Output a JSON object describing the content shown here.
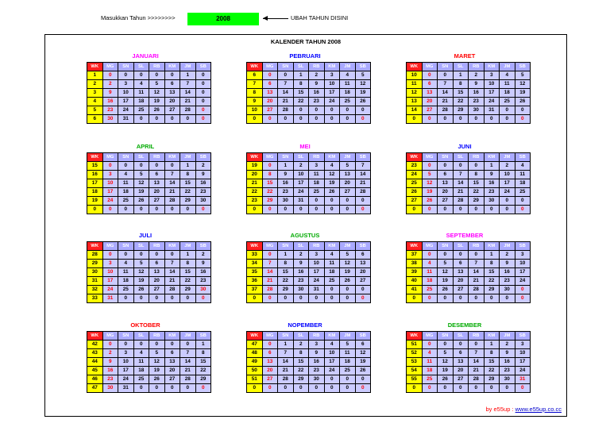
{
  "top": {
    "prompt": "Masukkan Tahun >>>>>>>>",
    "year": "2008",
    "hint": "UBAH TAHUN DISINI"
  },
  "title": "KALENDER TAHUN 2008",
  "headers": [
    "WK",
    "MG",
    "SN",
    "SL",
    "RB",
    "KM",
    "JM",
    "SB"
  ],
  "colors": {
    "wk_header": "#ff2020",
    "wk_cell": "#ffff00",
    "cell": "#ccccff",
    "header": "#aaaaff",
    "sunday": "#ff0000"
  },
  "months": [
    {
      "name": "JANUARI",
      "color": "#ff00ff",
      "rows": [
        [
          "1",
          "0",
          "0",
          "0",
          "0",
          "0",
          "1"
        ],
        [
          "2",
          "2",
          "3",
          "4",
          "5",
          "6",
          "7"
        ],
        [
          "3",
          "9",
          "10",
          "11",
          "12",
          "13",
          "14"
        ],
        [
          "4",
          "16",
          "17",
          "18",
          "19",
          "20",
          "21"
        ],
        [
          "5",
          "23",
          "24",
          "25",
          "26",
          "27",
          "28"
        ],
        [
          "6",
          "30",
          "31",
          "0",
          "0",
          "0",
          "0"
        ]
      ],
      "red_sat": [
        4,
        5
      ]
    },
    {
      "name": "PEBRUARI",
      "color": "#0000ff",
      "rows": [
        [
          "6",
          "0",
          "0",
          "1",
          "2",
          "3",
          "4"
        ],
        [
          "7",
          "6",
          "7",
          "8",
          "9",
          "10",
          "11"
        ],
        [
          "8",
          "13",
          "14",
          "15",
          "16",
          "17",
          "18"
        ],
        [
          "9",
          "20",
          "21",
          "22",
          "23",
          "24",
          "25"
        ],
        [
          "10",
          "27",
          "28",
          "0",
          "0",
          "0",
          "0"
        ],
        [
          "0",
          "0",
          "0",
          "0",
          "0",
          "0",
          "0"
        ]
      ],
      "sat": [
        "5",
        "12",
        "19",
        "26",
        "0",
        "0"
      ],
      "red_sat": [
        5
      ]
    },
    {
      "name": "MARET",
      "color": "#ff0000",
      "rows": [
        [
          "10",
          "0",
          "0",
          "1",
          "2",
          "3",
          "4"
        ],
        [
          "11",
          "6",
          "7",
          "8",
          "9",
          "10",
          "11"
        ],
        [
          "12",
          "13",
          "14",
          "15",
          "16",
          "17",
          "18"
        ],
        [
          "13",
          "20",
          "21",
          "22",
          "23",
          "24",
          "25"
        ],
        [
          "14",
          "27",
          "28",
          "29",
          "30",
          "31",
          "0"
        ],
        [
          "0",
          "0",
          "0",
          "0",
          "0",
          "0",
          "0"
        ]
      ],
      "sat": [
        "5",
        "12",
        "19",
        "26",
        "0",
        "0"
      ],
      "red_sat": [
        5
      ]
    },
    {
      "name": "APRIL",
      "color": "#00aa00",
      "rows": [
        [
          "15",
          "0",
          "0",
          "0",
          "0",
          "0",
          "1"
        ],
        [
          "16",
          "3",
          "4",
          "5",
          "6",
          "7",
          "8"
        ],
        [
          "17",
          "10",
          "11",
          "12",
          "13",
          "14",
          "15"
        ],
        [
          "18",
          "17",
          "18",
          "19",
          "20",
          "21",
          "22"
        ],
        [
          "19",
          "24",
          "25",
          "26",
          "27",
          "28",
          "29"
        ],
        [
          "0",
          "0",
          "0",
          "0",
          "0",
          "0",
          "0"
        ]
      ],
      "sat": [
        "2",
        "9",
        "16",
        "23",
        "30",
        "0"
      ],
      "red_sat": [
        5
      ]
    },
    {
      "name": "MEI",
      "color": "#ff00ff",
      "rows": [
        [
          "19",
          "0",
          "1",
          "2",
          "3",
          "4",
          "5"
        ],
        [
          "20",
          "8",
          "9",
          "10",
          "11",
          "12",
          "13"
        ],
        [
          "21",
          "15",
          "16",
          "17",
          "18",
          "19",
          "20"
        ],
        [
          "22",
          "22",
          "23",
          "24",
          "25",
          "26",
          "27"
        ],
        [
          "23",
          "29",
          "30",
          "31",
          "0",
          "0",
          "0"
        ],
        [
          "0",
          "0",
          "0",
          "0",
          "0",
          "0",
          "0"
        ]
      ],
      "sat": [
        "7",
        "14",
        "21",
        "28",
        "0",
        "0"
      ],
      "red_sat": [
        5
      ]
    },
    {
      "name": "JUNI",
      "color": "#0000ff",
      "rows": [
        [
          "23",
          "0",
          "0",
          "0",
          "0",
          "1",
          "2"
        ],
        [
          "24",
          "5",
          "6",
          "7",
          "8",
          "9",
          "10"
        ],
        [
          "25",
          "12",
          "13",
          "14",
          "15",
          "16",
          "17"
        ],
        [
          "26",
          "19",
          "20",
          "21",
          "22",
          "23",
          "24"
        ],
        [
          "27",
          "26",
          "27",
          "28",
          "29",
          "30",
          "0"
        ],
        [
          "0",
          "0",
          "0",
          "0",
          "0",
          "0",
          "0"
        ]
      ],
      "sat": [
        "4",
        "11",
        "18",
        "25",
        "0",
        "0"
      ],
      "red_sat": [
        5
      ]
    },
    {
      "name": "JULI",
      "color": "#0000ff",
      "rows": [
        [
          "28",
          "0",
          "0",
          "0",
          "0",
          "0",
          "1"
        ],
        [
          "29",
          "3",
          "4",
          "5",
          "6",
          "7",
          "8"
        ],
        [
          "30",
          "10",
          "11",
          "12",
          "13",
          "14",
          "15"
        ],
        [
          "31",
          "17",
          "18",
          "19",
          "20",
          "21",
          "22"
        ],
        [
          "32",
          "24",
          "25",
          "26",
          "27",
          "28",
          "29"
        ],
        [
          "33",
          "31",
          "0",
          "0",
          "0",
          "0",
          "0"
        ]
      ],
      "sat": [
        "2",
        "9",
        "16",
        "23",
        "30",
        "0"
      ],
      "red_sat": [
        4,
        5
      ]
    },
    {
      "name": "AGUSTUS",
      "color": "#00aa00",
      "rows": [
        [
          "33",
          "0",
          "1",
          "2",
          "3",
          "4",
          "5"
        ],
        [
          "34",
          "7",
          "8",
          "9",
          "10",
          "11",
          "12"
        ],
        [
          "35",
          "14",
          "15",
          "16",
          "17",
          "18",
          "19"
        ],
        [
          "36",
          "21",
          "22",
          "23",
          "24",
          "25",
          "26"
        ],
        [
          "37",
          "28",
          "29",
          "30",
          "31",
          "0",
          "0"
        ],
        [
          "0",
          "0",
          "0",
          "0",
          "0",
          "0",
          "0"
        ]
      ],
      "sat": [
        "6",
        "13",
        "20",
        "27",
        "0",
        "0"
      ],
      "red_sat": [
        5
      ]
    },
    {
      "name": "SEPTEMBER",
      "color": "#ff00ff",
      "rows": [
        [
          "37",
          "0",
          "0",
          "0",
          "0",
          "1",
          "2"
        ],
        [
          "38",
          "4",
          "5",
          "6",
          "7",
          "8",
          "9"
        ],
        [
          "39",
          "11",
          "12",
          "13",
          "14",
          "15",
          "16"
        ],
        [
          "40",
          "18",
          "19",
          "20",
          "21",
          "22",
          "23"
        ],
        [
          "41",
          "25",
          "26",
          "27",
          "28",
          "29",
          "30"
        ],
        [
          "0",
          "0",
          "0",
          "0",
          "0",
          "0",
          "0"
        ]
      ],
      "sat": [
        "3",
        "10",
        "17",
        "24",
        "0",
        "0"
      ],
      "red_sat": [
        4,
        5
      ]
    },
    {
      "name": "OKTOBER",
      "color": "#ff0000",
      "rows": [
        [
          "42",
          "0",
          "0",
          "0",
          "0",
          "0",
          "0"
        ],
        [
          "43",
          "2",
          "3",
          "4",
          "5",
          "6",
          "7"
        ],
        [
          "44",
          "9",
          "10",
          "11",
          "12",
          "13",
          "14"
        ],
        [
          "45",
          "16",
          "17",
          "18",
          "19",
          "20",
          "21"
        ],
        [
          "46",
          "23",
          "24",
          "25",
          "26",
          "27",
          "28"
        ],
        [
          "47",
          "30",
          "31",
          "0",
          "0",
          "0",
          "0"
        ]
      ],
      "sat": [
        "1",
        "8",
        "15",
        "22",
        "29",
        "0"
      ],
      "red_sat": [
        5
      ]
    },
    {
      "name": "NOPEMBER",
      "color": "#0000ff",
      "rows": [
        [
          "47",
          "0",
          "1",
          "2",
          "3",
          "4",
          "5"
        ],
        [
          "48",
          "6",
          "7",
          "8",
          "9",
          "10",
          "11"
        ],
        [
          "49",
          "13",
          "14",
          "15",
          "16",
          "17",
          "18"
        ],
        [
          "50",
          "20",
          "21",
          "22",
          "23",
          "24",
          "25"
        ],
        [
          "51",
          "27",
          "28",
          "29",
          "30",
          "0",
          "0"
        ],
        [
          "0",
          "0",
          "0",
          "0",
          "0",
          "0",
          "0"
        ]
      ],
      "sat": [
        "6",
        "12",
        "19",
        "26",
        "0",
        "0"
      ],
      "red_sat": [
        5
      ]
    },
    {
      "name": "DESEMBER",
      "color": "#00aa00",
      "rows": [
        [
          "51",
          "0",
          "0",
          "0",
          "0",
          "1",
          "2"
        ],
        [
          "52",
          "4",
          "5",
          "6",
          "7",
          "8",
          "9"
        ],
        [
          "53",
          "11",
          "12",
          "13",
          "14",
          "15",
          "16"
        ],
        [
          "54",
          "18",
          "19",
          "20",
          "21",
          "22",
          "23"
        ],
        [
          "55",
          "25",
          "26",
          "27",
          "28",
          "29",
          "30"
        ],
        [
          "0",
          "0",
          "0",
          "0",
          "0",
          "0",
          "0"
        ]
      ],
      "sat": [
        "3",
        "10",
        "17",
        "24",
        "31",
        "0"
      ],
      "red_sat": [
        4,
        5
      ]
    }
  ],
  "credit": {
    "text": "by e55up : ",
    "link": "www.e55up.co.cc"
  }
}
